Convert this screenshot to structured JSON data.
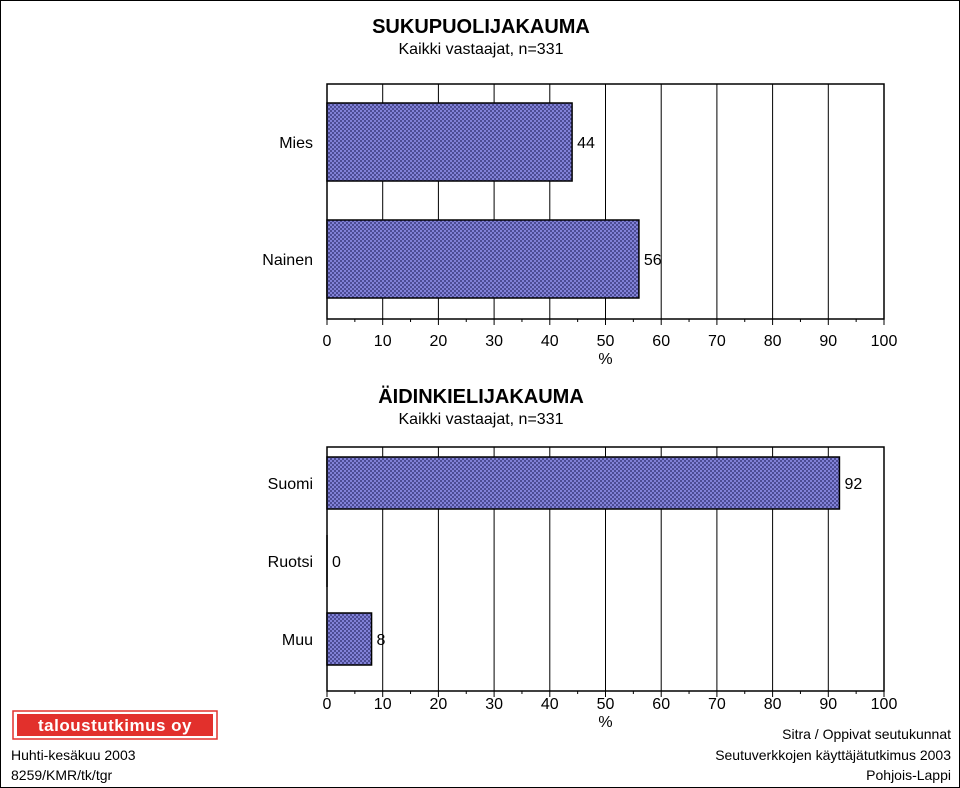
{
  "chart_data": [
    {
      "type": "bar",
      "orientation": "horizontal",
      "title": "SUKUPUOLIJAKAUMA",
      "subtitle": "Kaikki vastaajat, n=331",
      "categories": [
        "Mies",
        "Nainen"
      ],
      "values": [
        44,
        56
      ],
      "data_labels": [
        "44",
        "56"
      ],
      "xlabel": "%",
      "xlim": [
        0,
        100
      ],
      "xticks": [
        "0",
        "10",
        "20",
        "30",
        "40",
        "50",
        "60",
        "70",
        "80",
        "90",
        "100"
      ],
      "grid": "vertical",
      "bar_color": "#6b6bd6"
    },
    {
      "type": "bar",
      "orientation": "horizontal",
      "title": "ÄIDINKIELIJAKAUMA",
      "subtitle": "Kaikki vastaajat, n=331",
      "categories": [
        "Suomi",
        "Ruotsi",
        "Muu"
      ],
      "values": [
        92,
        0,
        8
      ],
      "data_labels": [
        "92",
        "0",
        "8"
      ],
      "xlabel": "%",
      "xlim": [
        0,
        100
      ],
      "xticks": [
        "0",
        "10",
        "20",
        "30",
        "40",
        "50",
        "60",
        "70",
        "80",
        "90",
        "100"
      ],
      "grid": "vertical",
      "bar_color": "#6b6bd6"
    }
  ],
  "logo": {
    "text": "taloustutkimus oy",
    "color": "#e2302c"
  },
  "footer_left": [
    "Huhti-kesäkuu 2003",
    "8259/KMR/tk/tgr"
  ],
  "footer_right": [
    "Sitra / Oppivat seutukunnat",
    "Seutuverkkojen käyttäjätutkimus 2003",
    "Pohjois-Lappi"
  ]
}
